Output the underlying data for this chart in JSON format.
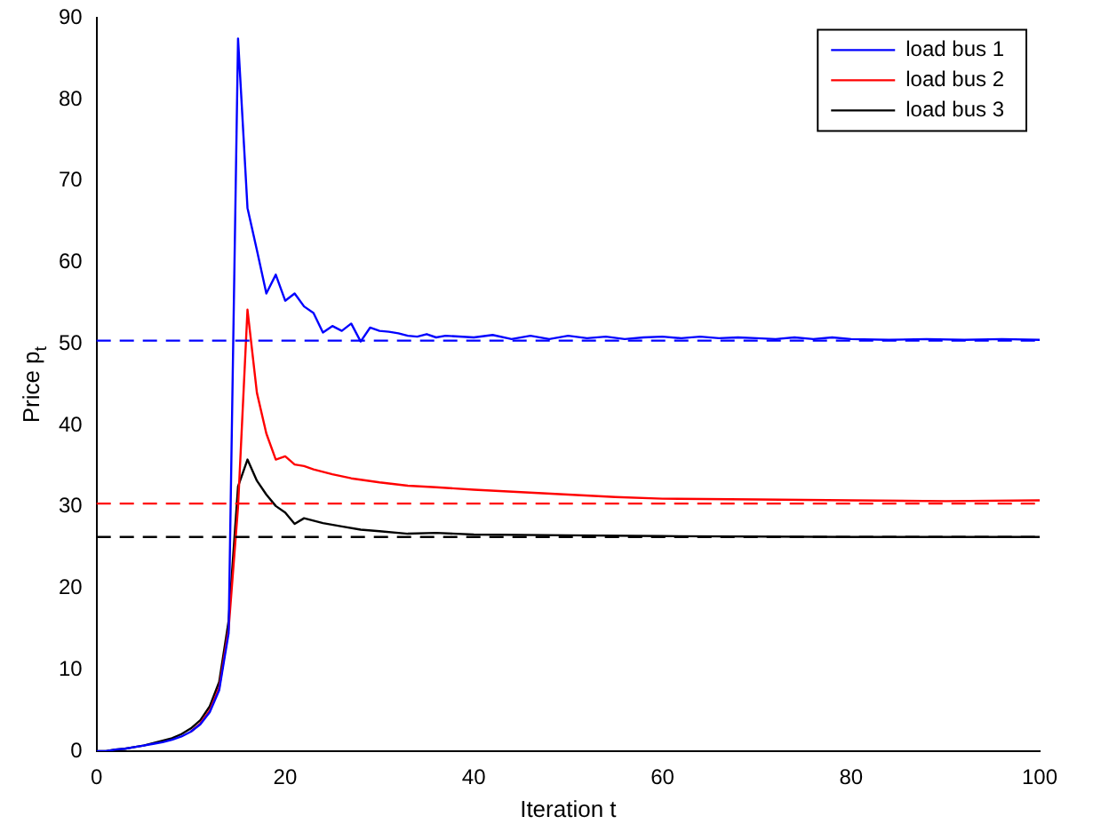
{
  "chart_data": {
    "type": "line",
    "xlabel": "Iteration t",
    "ylabel": "Price p$_{t}$",
    "xlim": [
      0,
      100
    ],
    "xticks": [
      0,
      20,
      40,
      60,
      80,
      100
    ],
    "ylim": [
      0,
      90
    ],
    "yticks": [
      0,
      10,
      20,
      30,
      40,
      50,
      60,
      70,
      80,
      90
    ],
    "grid": false,
    "legend": "top right",
    "marker": "none",
    "line_style": "solid",
    "series": [
      {
        "name": "load bus 1",
        "color": "#0000ff",
        "x": [
          0,
          1,
          2,
          3,
          4,
          5,
          6,
          7,
          8,
          9,
          10,
          11,
          12,
          13,
          14,
          15,
          16,
          17,
          18,
          19,
          20,
          21,
          22,
          23,
          24,
          25,
          26,
          27,
          28,
          29,
          30,
          31,
          32,
          33,
          34,
          35,
          36,
          37,
          40,
          42,
          44,
          46,
          48,
          50,
          52,
          54,
          56,
          58,
          60,
          62,
          64,
          66,
          68,
          70,
          72,
          74,
          76,
          78,
          80,
          84,
          88,
          92,
          96,
          100
        ],
        "values": [
          0,
          0,
          0.2,
          0.3,
          0.5,
          0.7,
          0.9,
          1.1,
          1.4,
          1.8,
          2.4,
          3.3,
          4.8,
          7.5,
          14.5,
          87.5,
          66.7,
          61.5,
          56.2,
          58.5,
          55.3,
          56.2,
          54.6,
          53.8,
          51.4,
          52.2,
          51.6,
          52.5,
          50.3,
          52.0,
          51.6,
          51.5,
          51.3,
          51.0,
          50.9,
          51.2,
          50.8,
          51.0,
          50.8,
          51.1,
          50.6,
          51.0,
          50.6,
          51.0,
          50.7,
          50.9,
          50.6,
          50.8,
          50.9,
          50.7,
          50.9,
          50.7,
          50.8,
          50.7,
          50.6,
          50.8,
          50.6,
          50.8,
          50.6,
          50.5,
          50.6,
          50.5,
          50.6,
          50.5
        ]
      },
      {
        "name": "load bus 2",
        "color": "#ff0000",
        "x": [
          10,
          11,
          12,
          13,
          14,
          15,
          16,
          17,
          18,
          19,
          20,
          21,
          22,
          23,
          24,
          25,
          27,
          30,
          33,
          36,
          40,
          45,
          50,
          55,
          60,
          70,
          80,
          90,
          100
        ],
        "values": [
          2.4,
          3.4,
          5,
          7.8,
          15,
          30,
          54.2,
          44,
          39,
          35.8,
          36.2,
          35.2,
          35,
          34.6,
          34.3,
          34,
          33.5,
          33,
          32.6,
          32.4,
          32.1,
          31.8,
          31.5,
          31.2,
          31,
          30.9,
          30.8,
          30.7,
          30.8
        ]
      },
      {
        "name": "load bus 3",
        "color": "#000000",
        "x": [
          0,
          1,
          2,
          3,
          4,
          5,
          6,
          7,
          8,
          9,
          10,
          11,
          12,
          13,
          14,
          15,
          16,
          17,
          18,
          19,
          20,
          21,
          22,
          23,
          24,
          26,
          28,
          30,
          33,
          36,
          40,
          50,
          60,
          80,
          100
        ],
        "values": [
          0,
          0,
          0.2,
          0.3,
          0.5,
          0.7,
          1,
          1.3,
          1.6,
          2.1,
          2.8,
          3.8,
          5.5,
          8.5,
          16,
          32.5,
          35.8,
          33.2,
          31.5,
          30.1,
          29.3,
          27.9,
          28.6,
          28.3,
          28,
          27.6,
          27.2,
          27,
          26.7,
          26.8,
          26.6,
          26.5,
          26.4,
          26.3,
          26.3
        ]
      }
    ],
    "ref_lines": [
      {
        "axis": "y",
        "value": 50.4,
        "color": "#0000ff",
        "line_style": "dashed"
      },
      {
        "axis": "y",
        "value": 30.4,
        "color": "#ff0000",
        "line_style": "dashed"
      },
      {
        "axis": "y",
        "value": 26.3,
        "color": "#000000",
        "line_style": "dashed"
      }
    ]
  }
}
